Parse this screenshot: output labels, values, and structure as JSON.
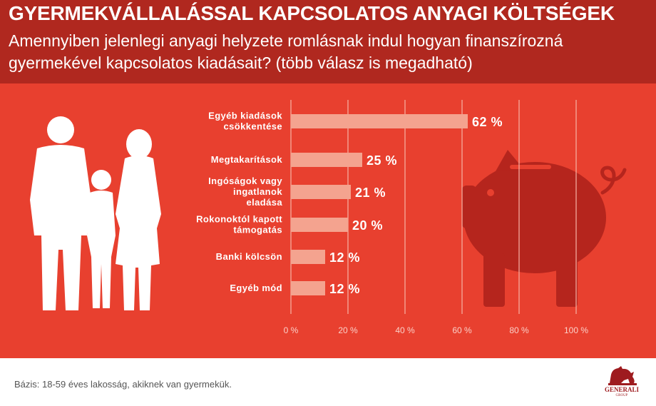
{
  "header": {
    "title": "GYERMEKVÁLLALÁSSAL KAPCSOLATOS ANYAGI KÖLTSÉGEK",
    "subtitle": "Amennyiben jelenlegi anyagi helyzete romlásnak indul hogyan finanszírozná gyermekével kapcsolatos kiadásait? (több válasz is megadható)"
  },
  "colors": {
    "header_bg": "#b0281f",
    "panel_bg": "#e8402f",
    "bar": "#f4a38f",
    "silhouette_light": "#ffffff",
    "silhouette_dark": "#b5251d",
    "brand": "#9e1b1f"
  },
  "illustrations": {
    "left": "family-silhouette-icon",
    "right": "piggy-bank-icon"
  },
  "chart_data": {
    "type": "bar",
    "orientation": "horizontal",
    "categories": [
      [
        "Egyéb kiadások",
        "csökkentése"
      ],
      [
        "Megtakarítások"
      ],
      [
        "Ingóságok vagy",
        "ingatlanok",
        "eladása"
      ],
      [
        "Rokonoktól kapott",
        "támogatás"
      ],
      [
        "Banki kölcsön"
      ],
      [
        "Egyéb mód"
      ]
    ],
    "values": [
      62,
      25,
      21,
      20,
      12,
      12
    ],
    "value_labels": [
      "62 %",
      "25 %",
      "21 %",
      "20 %",
      "12 %",
      "12 %"
    ],
    "xlim": [
      0,
      100
    ],
    "xticks": [
      0,
      20,
      40,
      60,
      80,
      100
    ],
    "xtick_labels": [
      "0 %",
      "20 %",
      "40 %",
      "60 %",
      "80 %",
      "100 %"
    ],
    "grid": true
  },
  "footer": {
    "base_note": "Bázis: 18-59 éves lakosság, akiknek van gyermekük.",
    "logo_text": "GENERALI",
    "logo_subtext": "GROUP"
  }
}
